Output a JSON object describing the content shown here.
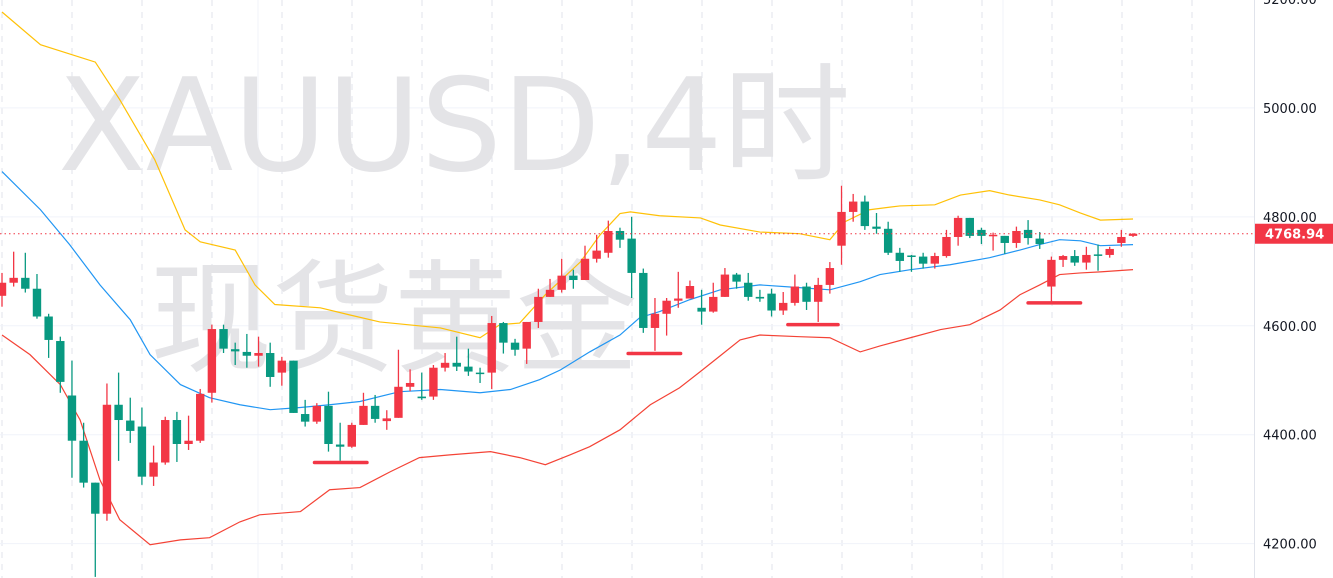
{
  "watermark": {
    "line1": "XAUUSD,4时",
    "line2": "现货黄金"
  },
  "chart_data": {
    "type": "candlestick",
    "symbol": "XAUUSD",
    "interval": "4时",
    "ylim": [
      4137,
      5198
    ],
    "grid": true,
    "price_ticks": [
      "5200.00",
      "5000.00",
      "4800.00",
      "4600.00",
      "4400.00",
      "4200.00"
    ],
    "price_tick_values": [
      5200,
      5000,
      4800,
      4600,
      4400,
      4200
    ],
    "last_price": 4768.94,
    "last_price_label": "4768.94",
    "colors": {
      "up": "#f23645",
      "down": "#089981",
      "bb_upper": "#ffc107",
      "bb_middle": "#2196f3",
      "bb_lower": "#f44336",
      "last_price_line": "#f23645",
      "support_marks": "#f23645"
    },
    "candles_ohlc": [
      [
        4655,
        4697,
        4635,
        4679
      ],
      [
        4679,
        4736,
        4672,
        4688
      ],
      [
        4688,
        4734,
        4661,
        4668
      ],
      [
        4668,
        4695,
        4613,
        4617
      ],
      [
        4617,
        4622,
        4541,
        4574
      ],
      [
        4572,
        4580,
        4477,
        4497
      ],
      [
        4472,
        4536,
        4321,
        4389
      ],
      [
        4389,
        4422,
        4303,
        4312
      ],
      [
        4312,
        4312,
        4139,
        4255
      ],
      [
        4255,
        4494,
        4242,
        4455
      ],
      [
        4455,
        4514,
        4352,
        4427
      ],
      [
        4426,
        4468,
        4385,
        4407
      ],
      [
        4415,
        4450,
        4308,
        4323
      ],
      [
        4323,
        4380,
        4306,
        4349
      ],
      [
        4349,
        4433,
        4345,
        4427
      ],
      [
        4427,
        4442,
        4350,
        4383
      ],
      [
        4383,
        4435,
        4372,
        4389
      ],
      [
        4389,
        4484,
        4385,
        4475
      ],
      [
        4477,
        4602,
        4459,
        4594
      ],
      [
        4594,
        4602,
        4550,
        4558
      ],
      [
        4557,
        4569,
        4528,
        4553
      ],
      [
        4552,
        4585,
        4523,
        4545
      ],
      [
        4545,
        4580,
        4525,
        4550
      ],
      [
        4550,
        4569,
        4488,
        4506
      ],
      [
        4514,
        4543,
        4490,
        4536
      ],
      [
        4536,
        4536,
        4440,
        4440
      ],
      [
        4438,
        4464,
        4415,
        4424
      ],
      [
        4424,
        4458,
        4420,
        4453
      ],
      [
        4453,
        4479,
        4369,
        4383
      ],
      [
        4382,
        4422,
        4352,
        4378
      ],
      [
        4378,
        4422,
        4376,
        4418
      ],
      [
        4418,
        4477,
        4418,
        4453
      ],
      [
        4453,
        4473,
        4422,
        4429
      ],
      [
        4425,
        4445,
        4409,
        4430
      ],
      [
        4431,
        4556,
        4431,
        4488
      ],
      [
        4488,
        4520,
        4480,
        4495
      ],
      [
        4470,
        4514,
        4464,
        4467
      ],
      [
        4470,
        4528,
        4464,
        4523
      ],
      [
        4523,
        4550,
        4516,
        4532
      ],
      [
        4532,
        4580,
        4517,
        4525
      ],
      [
        4525,
        4558,
        4508,
        4516
      ],
      [
        4514,
        4523,
        4495,
        4512
      ],
      [
        4514,
        4618,
        4484,
        4605
      ],
      [
        4605,
        4607,
        4549,
        4569
      ],
      [
        4569,
        4576,
        4545,
        4556
      ],
      [
        4558,
        4607,
        4530,
        4607
      ],
      [
        4607,
        4668,
        4596,
        4653
      ],
      [
        4653,
        4686,
        4653,
        4666
      ],
      [
        4666,
        4723,
        4661,
        4692
      ],
      [
        4692,
        4703,
        4668,
        4684
      ],
      [
        4684,
        4747,
        4684,
        4723
      ],
      [
        4723,
        4767,
        4716,
        4738
      ],
      [
        4734,
        4793,
        4725,
        4774
      ],
      [
        4774,
        4780,
        4743,
        4758
      ],
      [
        4760,
        4800,
        4651,
        4697
      ],
      [
        4697,
        4705,
        4587,
        4596
      ],
      [
        4596,
        4651,
        4554,
        4622
      ],
      [
        4622,
        4651,
        4582,
        4646
      ],
      [
        4646,
        4699,
        4633,
        4650
      ],
      [
        4650,
        4683,
        4650,
        4673
      ],
      [
        4633,
        4666,
        4602,
        4626
      ],
      [
        4626,
        4679,
        4624,
        4653
      ],
      [
        4653,
        4706,
        4653,
        4694
      ],
      [
        4694,
        4697,
        4668,
        4681
      ],
      [
        4679,
        4697,
        4646,
        4653
      ],
      [
        4653,
        4666,
        4644,
        4650
      ],
      [
        4659,
        4668,
        4617,
        4628
      ],
      [
        4628,
        4662,
        4620,
        4642
      ],
      [
        4642,
        4694,
        4637,
        4672
      ],
      [
        4672,
        4679,
        4629,
        4644
      ],
      [
        4644,
        4688,
        4607,
        4675
      ],
      [
        4675,
        4717,
        4659,
        4706
      ],
      [
        4747,
        4857,
        4712,
        4809
      ],
      [
        4809,
        4842,
        4791,
        4828
      ],
      [
        4828,
        4839,
        4776,
        4783
      ],
      [
        4782,
        4807,
        4769,
        4778
      ],
      [
        4778,
        4791,
        4730,
        4734
      ],
      [
        4734,
        4743,
        4699,
        4719
      ],
      [
        4729,
        4730,
        4699,
        4727
      ],
      [
        4727,
        4734,
        4705,
        4714
      ],
      [
        4714,
        4734,
        4705,
        4728
      ],
      [
        4728,
        4776,
        4725,
        4763
      ],
      [
        4763,
        4802,
        4747,
        4798
      ],
      [
        4798,
        4798,
        4761,
        4765
      ],
      [
        4776,
        4780,
        4750,
        4765
      ],
      [
        4765,
        4771,
        4738,
        4767
      ],
      [
        4765,
        4765,
        4732,
        4752
      ],
      [
        4752,
        4782,
        4743,
        4774
      ],
      [
        4776,
        4794,
        4749,
        4761
      ],
      [
        4760,
        4772,
        4741,
        4750
      ],
      [
        4672,
        4727,
        4644,
        4721
      ],
      [
        4721,
        4730,
        4708,
        4728
      ],
      [
        4728,
        4739,
        4710,
        4716
      ],
      [
        4716,
        4745,
        4703,
        4730
      ],
      [
        4731,
        4749,
        4701,
        4729
      ],
      [
        4730,
        4745,
        4725,
        4741
      ],
      [
        4752,
        4776,
        4745,
        4763
      ],
      [
        4765,
        4770,
        4763,
        4768.94
      ]
    ],
    "bollinger": {
      "upper": [
        [
          0,
          5176
        ],
        [
          3.3,
          5116
        ],
        [
          8,
          5084
        ],
        [
          10.1,
          5015
        ],
        [
          13.1,
          4905
        ],
        [
          15.7,
          4776
        ],
        [
          17,
          4754
        ],
        [
          20,
          4739
        ],
        [
          21.7,
          4675
        ],
        [
          23.4,
          4639
        ],
        [
          27.3,
          4633
        ],
        [
          29.8,
          4620
        ],
        [
          32.4,
          4607
        ],
        [
          37.6,
          4596
        ],
        [
          41,
          4578
        ],
        [
          42.7,
          4602
        ],
        [
          44.4,
          4605
        ],
        [
          46.6,
          4657
        ],
        [
          49.6,
          4717
        ],
        [
          51.3,
          4767
        ],
        [
          53,
          4806
        ],
        [
          53.9,
          4809
        ],
        [
          56.4,
          4802
        ],
        [
          59.9,
          4798
        ],
        [
          61.6,
          4785
        ],
        [
          65,
          4772
        ],
        [
          68.4,
          4769
        ],
        [
          71,
          4758
        ],
        [
          72.3,
          4791
        ],
        [
          74.4,
          4813
        ],
        [
          77,
          4820
        ],
        [
          80,
          4822
        ],
        [
          82.2,
          4840
        ],
        [
          84.7,
          4848
        ],
        [
          86.4,
          4840
        ],
        [
          89,
          4831
        ],
        [
          90.7,
          4822
        ],
        [
          92.5,
          4807
        ],
        [
          94.2,
          4794
        ],
        [
          97,
          4796
        ]
      ],
      "middle": [
        [
          0,
          4883
        ],
        [
          3.3,
          4813
        ],
        [
          5.8,
          4749
        ],
        [
          8.4,
          4675
        ],
        [
          11,
          4611
        ],
        [
          12.7,
          4547
        ],
        [
          15.3,
          4492
        ],
        [
          17.8,
          4468
        ],
        [
          20.4,
          4455
        ],
        [
          23,
          4446
        ],
        [
          25.6,
          4450
        ],
        [
          28.1,
          4455
        ],
        [
          30.7,
          4461
        ],
        [
          34.1,
          4479
        ],
        [
          37.6,
          4483
        ],
        [
          41,
          4477
        ],
        [
          43.6,
          4483
        ],
        [
          46.1,
          4501
        ],
        [
          47.9,
          4519
        ],
        [
          50.4,
          4552
        ],
        [
          53,
          4583
        ],
        [
          54.7,
          4615
        ],
        [
          56.4,
          4626
        ],
        [
          59,
          4648
        ],
        [
          61.6,
          4666
        ],
        [
          65,
          4675
        ],
        [
          68.4,
          4670
        ],
        [
          71,
          4666
        ],
        [
          73.6,
          4681
        ],
        [
          75.3,
          4694
        ],
        [
          77.9,
          4703
        ],
        [
          81.3,
          4712
        ],
        [
          84.7,
          4725
        ],
        [
          87.3,
          4739
        ],
        [
          89,
          4749
        ],
        [
          90.7,
          4758
        ],
        [
          92.5,
          4756
        ],
        [
          94.2,
          4747
        ],
        [
          97,
          4749
        ]
      ],
      "lower": [
        [
          0,
          4583
        ],
        [
          2.4,
          4547
        ],
        [
          5,
          4492
        ],
        [
          6.7,
          4427
        ],
        [
          8.4,
          4317
        ],
        [
          10.1,
          4244
        ],
        [
          12.7,
          4198
        ],
        [
          15.3,
          4207
        ],
        [
          17.8,
          4211
        ],
        [
          20.4,
          4240
        ],
        [
          22.1,
          4253
        ],
        [
          25.6,
          4259
        ],
        [
          28.1,
          4299
        ],
        [
          30.7,
          4303
        ],
        [
          33.3,
          4332
        ],
        [
          35.8,
          4358
        ],
        [
          38.4,
          4363
        ],
        [
          41.9,
          4369
        ],
        [
          44.4,
          4358
        ],
        [
          46.6,
          4345
        ],
        [
          48.7,
          4363
        ],
        [
          50.4,
          4378
        ],
        [
          53,
          4409
        ],
        [
          55.6,
          4455
        ],
        [
          58.1,
          4486
        ],
        [
          59.9,
          4516
        ],
        [
          61.6,
          4545
        ],
        [
          63.3,
          4574
        ],
        [
          65,
          4583
        ],
        [
          68.4,
          4580
        ],
        [
          71,
          4578
        ],
        [
          73.6,
          4552
        ],
        [
          75.3,
          4563
        ],
        [
          77.9,
          4578
        ],
        [
          80.5,
          4593
        ],
        [
          83,
          4602
        ],
        [
          85.6,
          4629
        ],
        [
          87.3,
          4657
        ],
        [
          89,
          4675
        ],
        [
          90.7,
          4694
        ],
        [
          92.5,
          4697
        ],
        [
          94.2,
          4699
        ],
        [
          97,
          4703
        ]
      ]
    },
    "support_marks": [
      {
        "price": 4349,
        "from": 26.8,
        "to": 31.3
      },
      {
        "price": 4549,
        "from": 53.7,
        "to": 58.2
      },
      {
        "price": 4602,
        "from": 67.4,
        "to": 71.7
      },
      {
        "price": 4642,
        "from": 88,
        "to": 92.5
      }
    ]
  }
}
